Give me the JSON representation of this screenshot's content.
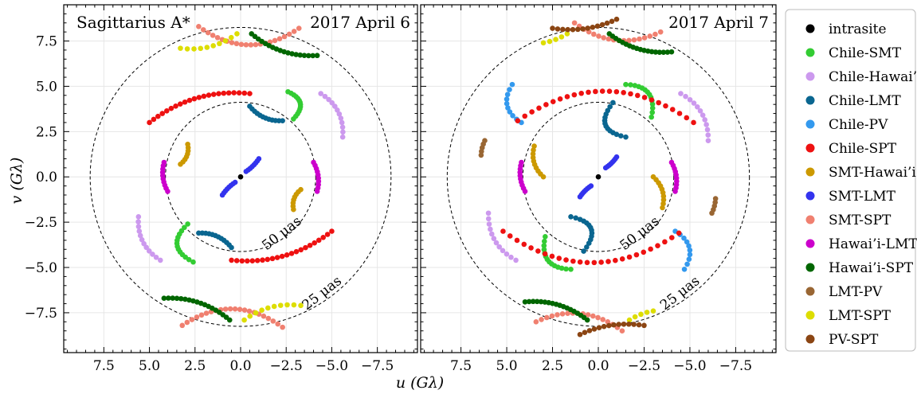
{
  "chart_data": {
    "type": "scatter",
    "xlabel": "u (Gλ)",
    "ylabel": "v (Gλ)",
    "xlim": [
      9.7,
      -9.7
    ],
    "ylim": [
      -9.7,
      9.5
    ],
    "x_ticks": [
      7.5,
      5.0,
      2.5,
      0.0,
      -2.5,
      -5.0,
      -7.5
    ],
    "x_tick_labels": [
      "7.5",
      "5.0",
      "2.5",
      "0.0",
      "−2.5",
      "−5.0",
      "−7.5"
    ],
    "y_ticks": [
      7.5,
      5.0,
      2.5,
      0.0,
      -2.5,
      -5.0,
      -7.5
    ],
    "y_tick_labels": [
      "7.5",
      "5.0",
      "2.5",
      "0.0",
      "−2.5",
      "−5.0",
      "−7.5"
    ],
    "grid": true,
    "legend_position": "right",
    "rings": [
      {
        "label": "50 μas",
        "radius": 4.12,
        "label_u": -2.4,
        "label_v": -3.3,
        "label_angle": -38
      },
      {
        "label": "25 μas",
        "radius": 8.25,
        "label_u": -4.6,
        "label_v": -6.6,
        "label_angle": -38
      }
    ],
    "source_label": "Sagittarius A*",
    "series": [
      {
        "name": "intrasite",
        "color": "#000000"
      },
      {
        "name": "Chile-SMT",
        "color": "#33cc33"
      },
      {
        "name": "Chile-Hawai’i",
        "color": "#cc99ee"
      },
      {
        "name": "Chile-LMT",
        "color": "#0a6690"
      },
      {
        "name": "Chile-PV",
        "color": "#3399ee"
      },
      {
        "name": "Chile-SPT",
        "color": "#ee1111"
      },
      {
        "name": "SMT-Hawai’i",
        "color": "#cc9900"
      },
      {
        "name": "SMT-LMT",
        "color": "#3333ee"
      },
      {
        "name": "SMT-SPT",
        "color": "#f08070"
      },
      {
        "name": "Hawai’i-LMT",
        "color": "#cc00cc"
      },
      {
        "name": "Hawai’i-SPT",
        "color": "#006600"
      },
      {
        "name": "LMT-PV",
        "color": "#996633"
      },
      {
        "name": "LMT-SPT",
        "color": "#dddd00"
      },
      {
        "name": "PV-SPT",
        "color": "#8b4513"
      }
    ],
    "panels": [
      {
        "title": "2017 April 6",
        "arcs": [
          {
            "series": "intrasite",
            "points": [
              [
                0.0,
                0.0
              ]
            ]
          },
          {
            "series": "Chile-SMT",
            "from": [
              -2.9,
              3.2
            ],
            "to": [
              -2.6,
              4.7
            ],
            "bulge": 0.7,
            "n": 14
          },
          {
            "series": "Chile-SMT",
            "from": [
              2.9,
              -2.6
            ],
            "to": [
              2.6,
              -4.7
            ],
            "bulge": 0.7,
            "n": 14
          },
          {
            "series": "Chile-Hawai’i",
            "from": [
              -4.4,
              4.6
            ],
            "to": [
              -5.6,
              2.2
            ],
            "bulge": -0.3,
            "n": 12
          },
          {
            "series": "Chile-Hawai’i",
            "from": [
              4.4,
              -4.6
            ],
            "to": [
              5.6,
              -2.2
            ],
            "bulge": -0.3,
            "n": 12
          },
          {
            "series": "Chile-LMT",
            "from": [
              -0.5,
              3.9
            ],
            "to": [
              -2.3,
              3.1
            ],
            "bulge": 0.25,
            "n": 12
          },
          {
            "series": "Chile-LMT",
            "from": [
              0.5,
              -3.9
            ],
            "to": [
              2.3,
              -3.1
            ],
            "bulge": 0.25,
            "n": 12
          },
          {
            "series": "Chile-SPT",
            "from": [
              -0.5,
              4.6
            ],
            "to": [
              5.0,
              3.0
            ],
            "bulge": 0.2,
            "n": 22
          },
          {
            "series": "Chile-SPT",
            "from": [
              0.5,
              -4.6
            ],
            "to": [
              -5.0,
              -3.0
            ],
            "bulge": 0.2,
            "n": 22
          },
          {
            "series": "SMT-Hawai’i",
            "from": [
              3.3,
              0.7
            ],
            "to": [
              2.9,
              1.8
            ],
            "bulge": 0.3,
            "n": 8
          },
          {
            "series": "SMT-Hawai’i",
            "from": [
              -3.3,
              -0.7
            ],
            "to": [
              -2.9,
              -1.8
            ],
            "bulge": 0.3,
            "n": 8
          },
          {
            "series": "SMT-LMT",
            "from": [
              -0.3,
              0.3
            ],
            "to": [
              -1.0,
              1.0
            ],
            "bulge": 0.1,
            "n": 8
          },
          {
            "series": "SMT-LMT",
            "from": [
              0.3,
              -0.3
            ],
            "to": [
              1.0,
              -1.0
            ],
            "bulge": 0.1,
            "n": 8
          },
          {
            "series": "SMT-SPT",
            "from": [
              2.3,
              8.3
            ],
            "to": [
              -3.2,
              8.2
            ],
            "bulge": 0.35,
            "n": 22
          },
          {
            "series": "SMT-SPT",
            "from": [
              -2.3,
              -8.3
            ],
            "to": [
              3.2,
              -8.2
            ],
            "bulge": 0.35,
            "n": 22
          },
          {
            "series": "Hawai’i-LMT",
            "from": [
              4.2,
              0.8
            ],
            "to": [
              4.0,
              -0.8
            ],
            "bulge": 0.2,
            "n": 10
          },
          {
            "series": "Hawai’i-LMT",
            "from": [
              -4.2,
              -0.8
            ],
            "to": [
              -4.0,
              0.8
            ],
            "bulge": 0.2,
            "n": 10
          },
          {
            "series": "Hawai’i-SPT",
            "from": [
              -0.6,
              7.9
            ],
            "to": [
              -4.2,
              6.7
            ],
            "bulge": 0.2,
            "n": 18
          },
          {
            "series": "Hawai’i-SPT",
            "from": [
              0.6,
              -7.9
            ],
            "to": [
              4.2,
              -6.7
            ],
            "bulge": 0.2,
            "n": 18
          },
          {
            "series": "LMT-SPT",
            "from": [
              3.3,
              7.1
            ],
            "to": [
              0.2,
              7.9
            ],
            "bulge": 0.2,
            "n": 10
          },
          {
            "series": "LMT-SPT",
            "from": [
              -3.3,
              -7.1
            ],
            "to": [
              -0.2,
              -7.9
            ],
            "bulge": 0.2,
            "n": 10
          }
        ]
      },
      {
        "title": "2017 April 7",
        "arcs": [
          {
            "series": "intrasite",
            "points": [
              [
                0.0,
                0.0
              ]
            ]
          },
          {
            "series": "Chile-SMT",
            "from": [
              -2.9,
              3.3
            ],
            "to": [
              -1.5,
              5.1
            ],
            "bulge": 0.6,
            "n": 14
          },
          {
            "series": "Chile-SMT",
            "from": [
              2.9,
              -3.3
            ],
            "to": [
              1.5,
              -5.1
            ],
            "bulge": 0.6,
            "n": 14
          },
          {
            "series": "Chile-Hawai’i",
            "from": [
              -4.5,
              4.6
            ],
            "to": [
              -6.0,
              2.0
            ],
            "bulge": -0.3,
            "n": 12
          },
          {
            "series": "Chile-Hawai’i",
            "from": [
              4.5,
              -4.6
            ],
            "to": [
              6.0,
              -2.0
            ],
            "bulge": -0.3,
            "n": 12
          },
          {
            "series": "Chile-LMT",
            "from": [
              -0.8,
              4.1
            ],
            "to": [
              -1.5,
              2.2
            ],
            "bulge": 0.8,
            "n": 14
          },
          {
            "series": "Chile-LMT",
            "from": [
              0.8,
              -4.1
            ],
            "to": [
              1.5,
              -2.2
            ],
            "bulge": 0.8,
            "n": 14
          },
          {
            "series": "Chile-PV",
            "from": [
              4.7,
              5.1
            ],
            "to": [
              4.2,
              3.0
            ],
            "bulge": 0.5,
            "n": 10
          },
          {
            "series": "Chile-PV",
            "from": [
              -4.7,
              -5.1
            ],
            "to": [
              -4.2,
              -3.0
            ],
            "bulge": 0.5,
            "n": 10
          },
          {
            "series": "Chile-SPT",
            "from": [
              -5.2,
              3.0
            ],
            "to": [
              4.4,
              3.1
            ],
            "bulge": 0.35,
            "n": 26
          },
          {
            "series": "Chile-SPT",
            "from": [
              5.2,
              -3.0
            ],
            "to": [
              -4.4,
              -3.1
            ],
            "bulge": 0.35,
            "n": 26
          },
          {
            "series": "SMT-Hawai’i",
            "from": [
              3.5,
              1.7
            ],
            "to": [
              3.0,
              0.0
            ],
            "bulge": 0.3,
            "n": 10
          },
          {
            "series": "SMT-Hawai’i",
            "from": [
              -3.5,
              -1.7
            ],
            "to": [
              -3.0,
              0.0
            ],
            "bulge": 0.3,
            "n": 10
          },
          {
            "series": "SMT-LMT",
            "from": [
              -0.4,
              0.5
            ],
            "to": [
              -1.0,
              1.1
            ],
            "bulge": 0.1,
            "n": 8
          },
          {
            "series": "SMT-LMT",
            "from": [
              0.4,
              -0.5
            ],
            "to": [
              1.0,
              -1.1
            ],
            "bulge": 0.1,
            "n": 8
          },
          {
            "series": "SMT-SPT",
            "from": [
              1.3,
              8.5
            ],
            "to": [
              -3.4,
              8.0
            ],
            "bulge": 0.3,
            "n": 18
          },
          {
            "series": "SMT-SPT",
            "from": [
              -1.3,
              -8.5
            ],
            "to": [
              3.4,
              -8.0
            ],
            "bulge": 0.3,
            "n": 18
          },
          {
            "series": "Hawai’i-LMT",
            "from": [
              4.2,
              0.8
            ],
            "to": [
              4.0,
              -0.8
            ],
            "bulge": 0.2,
            "n": 10
          },
          {
            "series": "Hawai’i-LMT",
            "from": [
              -4.2,
              -0.8
            ],
            "to": [
              -4.0,
              0.8
            ],
            "bulge": 0.2,
            "n": 10
          },
          {
            "series": "Hawai’i-SPT",
            "from": [
              -0.6,
              7.9
            ],
            "to": [
              -4.0,
              6.9
            ],
            "bulge": 0.2,
            "n": 18
          },
          {
            "series": "Hawai’i-SPT",
            "from": [
              0.6,
              -7.9
            ],
            "to": [
              4.0,
              -6.9
            ],
            "bulge": 0.2,
            "n": 18
          },
          {
            "series": "LMT-PV",
            "from": [
              6.2,
              2.0
            ],
            "to": [
              6.4,
              1.2
            ],
            "bulge": 0.1,
            "n": 5
          },
          {
            "series": "LMT-PV",
            "from": [
              -6.2,
              -2.0
            ],
            "to": [
              -6.4,
              -1.2
            ],
            "bulge": 0.1,
            "n": 5
          },
          {
            "series": "LMT-SPT",
            "from": [
              3.0,
              7.4
            ],
            "to": [
              1.7,
              7.9
            ],
            "bulge": 0.1,
            "n": 5
          },
          {
            "series": "LMT-SPT",
            "from": [
              -3.0,
              -7.4
            ],
            "to": [
              -1.7,
              -7.9
            ],
            "bulge": 0.1,
            "n": 5
          },
          {
            "series": "PV-SPT",
            "from": [
              2.5,
              8.2
            ],
            "to": [
              -1.0,
              8.7
            ],
            "bulge": 0.15,
            "n": 14
          },
          {
            "series": "PV-SPT",
            "from": [
              -2.5,
              -8.2
            ],
            "to": [
              1.0,
              -8.7
            ],
            "bulge": 0.15,
            "n": 14
          }
        ]
      }
    ]
  }
}
